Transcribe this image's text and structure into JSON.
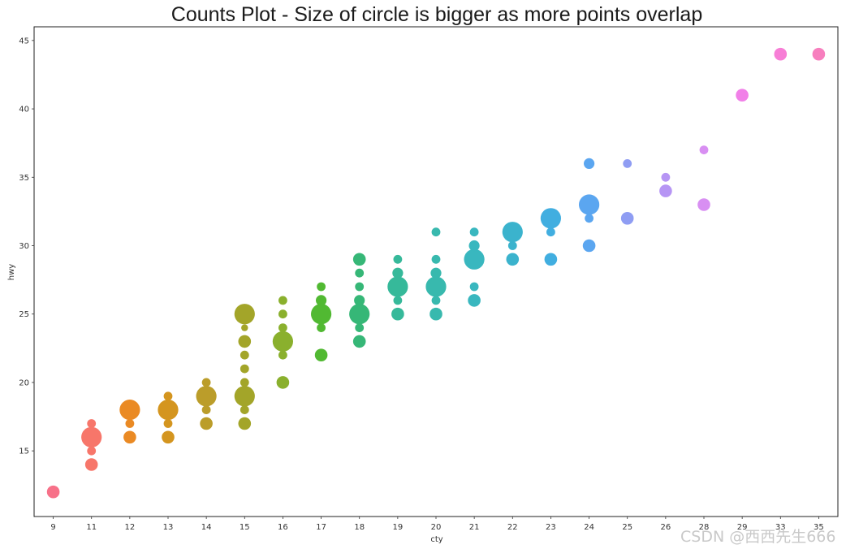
{
  "chart_data": {
    "type": "scatter",
    "title": "Counts Plot - Size of circle is bigger as more points overlap",
    "xlabel": "cty",
    "ylabel": "hwy",
    "x_categories": [
      "9",
      "11",
      "12",
      "13",
      "14",
      "15",
      "16",
      "17",
      "18",
      "19",
      "20",
      "21",
      "22",
      "23",
      "24",
      "25",
      "26",
      "28",
      "29",
      "33",
      "35"
    ],
    "ylim": [
      10.2,
      46.0
    ],
    "yticks": [
      15,
      20,
      25,
      30,
      35,
      40,
      45
    ],
    "grid": false,
    "legend": "none",
    "points": [
      {
        "x": "9",
        "y": 12,
        "count": 2,
        "color": "#f77189"
      },
      {
        "x": "11",
        "y": 14,
        "count": 2,
        "color": "#f7766a"
      },
      {
        "x": "11",
        "y": 15,
        "count": 1,
        "color": "#f7766a"
      },
      {
        "x": "11",
        "y": 16,
        "count": 4,
        "color": "#f7766a"
      },
      {
        "x": "11",
        "y": 17,
        "count": 1,
        "color": "#f7766a"
      },
      {
        "x": "12",
        "y": 16,
        "count": 2,
        "color": "#ea8a24"
      },
      {
        "x": "12",
        "y": 17,
        "count": 1,
        "color": "#ea8a24"
      },
      {
        "x": "12",
        "y": 18,
        "count": 4,
        "color": "#ea8a24"
      },
      {
        "x": "13",
        "y": 16,
        "count": 2,
        "color": "#d4951f"
      },
      {
        "x": "13",
        "y": 17,
        "count": 1,
        "color": "#d4951f"
      },
      {
        "x": "13",
        "y": 18,
        "count": 4,
        "color": "#d4951f"
      },
      {
        "x": "13",
        "y": 19,
        "count": 1,
        "color": "#d4951f"
      },
      {
        "x": "14",
        "y": 17,
        "count": 2,
        "color": "#bb9d2a"
      },
      {
        "x": "14",
        "y": 18,
        "count": 1,
        "color": "#bb9d2a"
      },
      {
        "x": "14",
        "y": 19,
        "count": 4,
        "color": "#bb9d2a"
      },
      {
        "x": "14",
        "y": 20,
        "count": 1,
        "color": "#bb9d2a"
      },
      {
        "x": "15",
        "y": 17,
        "count": 2,
        "color": "#a3a529"
      },
      {
        "x": "15",
        "y": 18,
        "count": 1,
        "color": "#a3a529"
      },
      {
        "x": "15",
        "y": 19,
        "count": 4,
        "color": "#a3a529"
      },
      {
        "x": "15",
        "y": 20,
        "count": 1,
        "color": "#a3a529"
      },
      {
        "x": "15",
        "y": 21,
        "count": 1,
        "color": "#a3a529"
      },
      {
        "x": "15",
        "y": 22,
        "count": 1,
        "color": "#a3a529"
      },
      {
        "x": "15",
        "y": 23,
        "count": 2,
        "color": "#a3a529"
      },
      {
        "x": "15",
        "y": 24,
        "count": 0.5,
        "color": "#a3a529"
      },
      {
        "x": "15",
        "y": 25,
        "count": 4,
        "color": "#a3a529"
      },
      {
        "x": "16",
        "y": 20,
        "count": 2,
        "color": "#8ab02d"
      },
      {
        "x": "16",
        "y": 22,
        "count": 1,
        "color": "#8ab02d"
      },
      {
        "x": "16",
        "y": 23,
        "count": 4,
        "color": "#8ab02d"
      },
      {
        "x": "16",
        "y": 24,
        "count": 1,
        "color": "#8ab02d"
      },
      {
        "x": "16",
        "y": 25,
        "count": 1,
        "color": "#8ab02d"
      },
      {
        "x": "16",
        "y": 26,
        "count": 1,
        "color": "#8ab02d"
      },
      {
        "x": "17",
        "y": 22,
        "count": 2,
        "color": "#51b932"
      },
      {
        "x": "17",
        "y": 24,
        "count": 1,
        "color": "#51b932"
      },
      {
        "x": "17",
        "y": 25,
        "count": 4,
        "color": "#51b932"
      },
      {
        "x": "17",
        "y": 26,
        "count": 1.5,
        "color": "#51b932"
      },
      {
        "x": "17",
        "y": 27,
        "count": 1,
        "color": "#51b932"
      },
      {
        "x": "18",
        "y": 23,
        "count": 2,
        "color": "#36b777"
      },
      {
        "x": "18",
        "y": 24,
        "count": 1,
        "color": "#36b777"
      },
      {
        "x": "18",
        "y": 25,
        "count": 4,
        "color": "#36b777"
      },
      {
        "x": "18",
        "y": 26,
        "count": 1.5,
        "color": "#36b777"
      },
      {
        "x": "18",
        "y": 27,
        "count": 1,
        "color": "#36b777"
      },
      {
        "x": "18",
        "y": 28,
        "count": 1,
        "color": "#36b777"
      },
      {
        "x": "18",
        "y": 29,
        "count": 2,
        "color": "#36b777"
      },
      {
        "x": "19",
        "y": 25,
        "count": 2,
        "color": "#36b99a"
      },
      {
        "x": "19",
        "y": 26,
        "count": 1,
        "color": "#36b99a"
      },
      {
        "x": "19",
        "y": 27,
        "count": 4,
        "color": "#36b99a"
      },
      {
        "x": "19",
        "y": 28,
        "count": 1.5,
        "color": "#36b99a"
      },
      {
        "x": "19",
        "y": 29,
        "count": 1,
        "color": "#36b99a"
      },
      {
        "x": "20",
        "y": 25,
        "count": 2,
        "color": "#38b9ae"
      },
      {
        "x": "20",
        "y": 26,
        "count": 1,
        "color": "#38b9ae"
      },
      {
        "x": "20",
        "y": 27,
        "count": 4,
        "color": "#38b9ae"
      },
      {
        "x": "20",
        "y": 28,
        "count": 1.5,
        "color": "#38b9ae"
      },
      {
        "x": "20",
        "y": 29,
        "count": 1,
        "color": "#38b9ae"
      },
      {
        "x": "20",
        "y": 31,
        "count": 1,
        "color": "#38b9ae"
      },
      {
        "x": "21",
        "y": 26,
        "count": 2,
        "color": "#39b7bf"
      },
      {
        "x": "21",
        "y": 27,
        "count": 1,
        "color": "#39b7bf"
      },
      {
        "x": "21",
        "y": 29,
        "count": 4,
        "color": "#39b7bf"
      },
      {
        "x": "21",
        "y": 30,
        "count": 1.5,
        "color": "#39b7bf"
      },
      {
        "x": "21",
        "y": 31,
        "count": 1,
        "color": "#39b7bf"
      },
      {
        "x": "22",
        "y": 29,
        "count": 2,
        "color": "#3bb3cd"
      },
      {
        "x": "22",
        "y": 30,
        "count": 1,
        "color": "#3bb3cd"
      },
      {
        "x": "22",
        "y": 31,
        "count": 4,
        "color": "#3bb3cd"
      },
      {
        "x": "23",
        "y": 29,
        "count": 2,
        "color": "#41aee0"
      },
      {
        "x": "23",
        "y": 31,
        "count": 1,
        "color": "#41aee0"
      },
      {
        "x": "23",
        "y": 32,
        "count": 4,
        "color": "#41aee0"
      },
      {
        "x": "24",
        "y": 30,
        "count": 2,
        "color": "#5ba6f0"
      },
      {
        "x": "24",
        "y": 32,
        "count": 1,
        "color": "#5ba6f0"
      },
      {
        "x": "24",
        "y": 33,
        "count": 4,
        "color": "#5ba6f0"
      },
      {
        "x": "24",
        "y": 36,
        "count": 1.5,
        "color": "#5ba6f0"
      },
      {
        "x": "25",
        "y": 32,
        "count": 2,
        "color": "#8f9df3"
      },
      {
        "x": "25",
        "y": 36,
        "count": 1,
        "color": "#8f9df3"
      },
      {
        "x": "26",
        "y": 34,
        "count": 2,
        "color": "#b695f4"
      },
      {
        "x": "26",
        "y": 35,
        "count": 1,
        "color": "#b695f4"
      },
      {
        "x": "28",
        "y": 33,
        "count": 2,
        "color": "#d88ff2"
      },
      {
        "x": "28",
        "y": 37,
        "count": 1,
        "color": "#d88ff2"
      },
      {
        "x": "29",
        "y": 41,
        "count": 2,
        "color": "#f180e8"
      },
      {
        "x": "33",
        "y": 44,
        "count": 2,
        "color": "#f77ed6"
      },
      {
        "x": "35",
        "y": 44,
        "count": 2,
        "color": "#f77fbe"
      }
    ]
  },
  "watermark": "CSDN @西西先生666"
}
